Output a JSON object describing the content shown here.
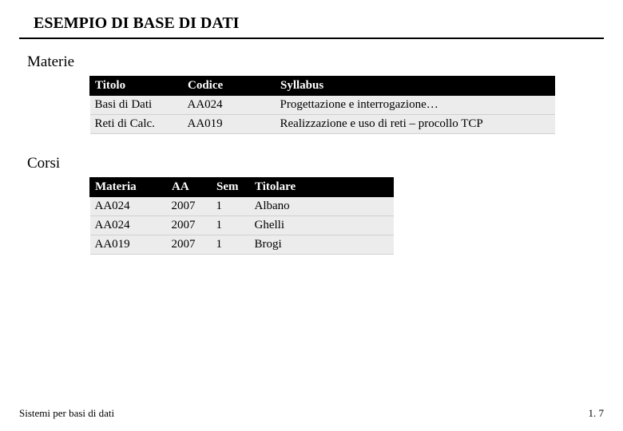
{
  "title": "ESEMPIO DI BASE DI DATI",
  "section1": {
    "label": "Materie"
  },
  "table1": {
    "h0": "Titolo",
    "h1": "Codice",
    "h2": "Syllabus",
    "r0c0": "Basi di Dati",
    "r0c1": "AA024",
    "r0c2": "Progettazione e interrogazione…",
    "r1c0": "Reti di Calc.",
    "r1c1": "AA019",
    "r1c2": "Realizzazione e uso di reti – procollo TCP",
    "col_widths": {
      "c0": 116,
      "c1": 116,
      "c2": 350
    }
  },
  "section2": {
    "label": "Corsi"
  },
  "table2": {
    "h0": "Materia",
    "h1": "AA",
    "h2": "Sem",
    "h3": "Titolare",
    "r0c0": "AA024",
    "r0c1": "2007",
    "r0c2": "1",
    "r0c3": "Albano",
    "r1c0": "AA024",
    "r1c1": "2007",
    "r1c2": "1",
    "r1c3": "Ghelli",
    "r2c0": "AA019",
    "r2c1": "2007",
    "r2c2": "1",
    "r2c3": "Brogi",
    "col_widths": {
      "c0": 96,
      "c1": 56,
      "c2": 48,
      "c3": 180
    }
  },
  "footer": {
    "left": "Sistemi per basi di dati",
    "right": "1. 7"
  }
}
